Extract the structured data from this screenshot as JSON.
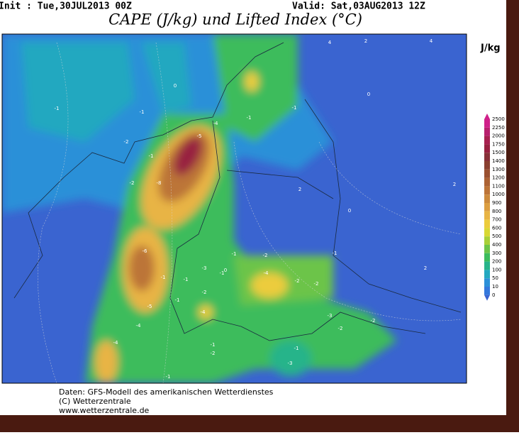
{
  "header": {
    "init": "Init : Tue,30JUL2013 00Z",
    "valid": "Valid: Sat,03AUG2013 12Z",
    "title": "CAPE (J/kg) und Lifted Index (°C)"
  },
  "colorbar": {
    "unit": "J/kg",
    "labels": [
      "2500",
      "2250",
      "2000",
      "1750",
      "1500",
      "1400",
      "1300",
      "1200",
      "1100",
      "1000",
      "900",
      "800",
      "700",
      "600",
      "500",
      "400",
      "300",
      "200",
      "100",
      "50",
      "10",
      "0"
    ],
    "colors": [
      "#d0208a",
      "#b8206e",
      "#a82050",
      "#982040",
      "#883038",
      "#8a4030",
      "#9a5030",
      "#ac6234",
      "#bc7438",
      "#cc8a3c",
      "#dc9e40",
      "#e8b444",
      "#eccc3c",
      "#d8d834",
      "#a8d038",
      "#6cc448",
      "#3cbc5c",
      "#28b48a",
      "#24a8c0",
      "#2c90d8",
      "#3478dc",
      "#3a64d0"
    ]
  },
  "contour_labels": [
    "-1",
    "-1",
    "-2",
    "-2",
    "-1",
    "-4",
    "-5",
    "-8",
    "-6",
    "-5",
    "-4",
    "-4",
    "-1",
    "-1",
    "-3",
    "-1",
    "-2",
    "-4",
    "-1",
    "-2",
    "-4",
    "-2",
    "-2",
    "-1",
    "-3",
    "-2",
    "-2",
    "-1",
    "-2",
    "-1",
    "-3",
    "-1",
    "0",
    "0",
    "2",
    "2",
    "0",
    "0",
    "2",
    "4",
    "4",
    "2",
    "-1",
    "-1",
    "-1"
  ],
  "footer": [
    "Daten: GFS-Modell des amerikanischen Wetterdienstes",
    "(C) Wetterzentrale",
    "www.wetterzentrale.de"
  ]
}
